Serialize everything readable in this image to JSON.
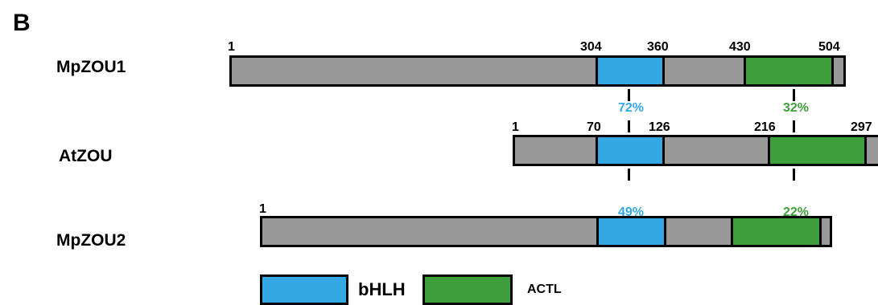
{
  "panel_label": "B",
  "proteins": {
    "mpzou1": {
      "name": "MpZOU1",
      "positions": {
        "start": "1",
        "bhlh_start": "304",
        "bhlh_end": "360",
        "actl_start": "430",
        "actl_end": "504"
      }
    },
    "atzou": {
      "name": "AtZOU",
      "positions": {
        "start": "1",
        "bhlh_start": "70",
        "bhlh_end": "126",
        "actl_start": "216",
        "actl_end": "297"
      }
    },
    "mpzou2": {
      "name": "MpZOU2",
      "positions": {
        "start": "1",
        "bhlh_start": "279",
        "bhlh_end": "335",
        "actl_start": "393",
        "actl_end": "467"
      }
    }
  },
  "identity": {
    "mpzou1_atzou_bhlh": "72%",
    "mpzou1_atzou_actl": "32%",
    "atzou_mpzou2_bhlh": "49%",
    "atzou_mpzou2_actl": "22%"
  },
  "legend": {
    "bhlh": "bHLH",
    "actl": "ACTL"
  },
  "colors": {
    "backbone": "#999999",
    "bhlh": "#33a8e3",
    "actl": "#3f9e3c",
    "outline": "#000000"
  }
}
